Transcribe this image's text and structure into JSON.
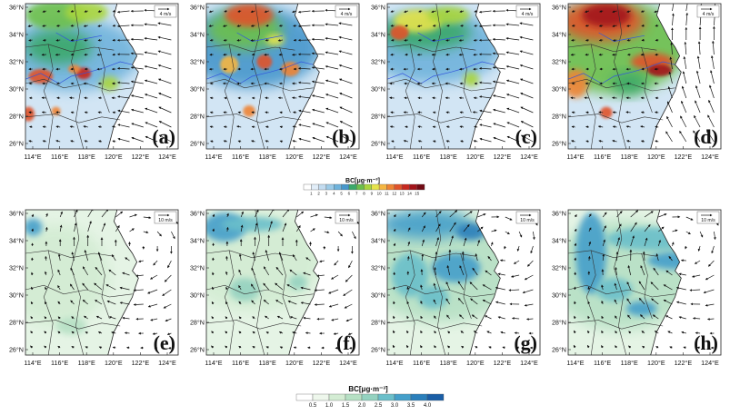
{
  "lon_ticks": [
    "114°E",
    "116°E",
    "118°E",
    "120°E",
    "122°E",
    "124°E"
  ],
  "lat_ticks": [
    "36°N",
    "34°N",
    "32°N",
    "30°N",
    "28°N",
    "26°N"
  ],
  "panels_top": [
    {
      "label": "(a)",
      "ref_vector": "4 m/s"
    },
    {
      "label": "(b)",
      "ref_vector": "4 m/s"
    },
    {
      "label": "(c)",
      "ref_vector": "4 m/s"
    },
    {
      "label": "(d)",
      "ref_vector": "4 m/s"
    }
  ],
  "panels_bottom": [
    {
      "label": "(e)",
      "ref_vector": "10 m/s"
    },
    {
      "label": "(f)",
      "ref_vector": "10 m/s"
    },
    {
      "label": "(g)",
      "ref_vector": "10 m/s"
    },
    {
      "label": "(h)",
      "ref_vector": "10 m/s"
    }
  ],
  "colorbar_top": {
    "title": "BC[μg·m⁻³]",
    "labels": [
      "1",
      "2",
      "3",
      "4",
      "5",
      "6",
      "7",
      "8",
      "9",
      "10",
      "11",
      "12",
      "13",
      "14",
      "15"
    ],
    "colors": [
      "#ffffff",
      "#e2eef9",
      "#c3dcf0",
      "#9ccbe8",
      "#6fb3dc",
      "#4797cc",
      "#3ba86a",
      "#6cbf4b",
      "#a9d53e",
      "#e6e34b",
      "#f5b642",
      "#ef8434",
      "#e0532a",
      "#c8281f",
      "#a3141a",
      "#720a14"
    ]
  },
  "colorbar_bottom": {
    "title": "BC[μg·m⁻³]",
    "labels": [
      "0.5",
      "1.0",
      "1.5",
      "2.0",
      "2.5",
      "3.0",
      "3.5",
      "4.0"
    ],
    "colors": [
      "#ffffff",
      "#eef7ec",
      "#d3ecd3",
      "#b6e0c4",
      "#94d2c0",
      "#6bbfca",
      "#449fca",
      "#2a7fbb",
      "#1a5ea6"
    ]
  },
  "colors": {
    "border": "#333333",
    "river": "#3355dd",
    "arrow": "#111111",
    "land_blue": "#c3dcf0",
    "land_green": "#d3ecd3"
  }
}
